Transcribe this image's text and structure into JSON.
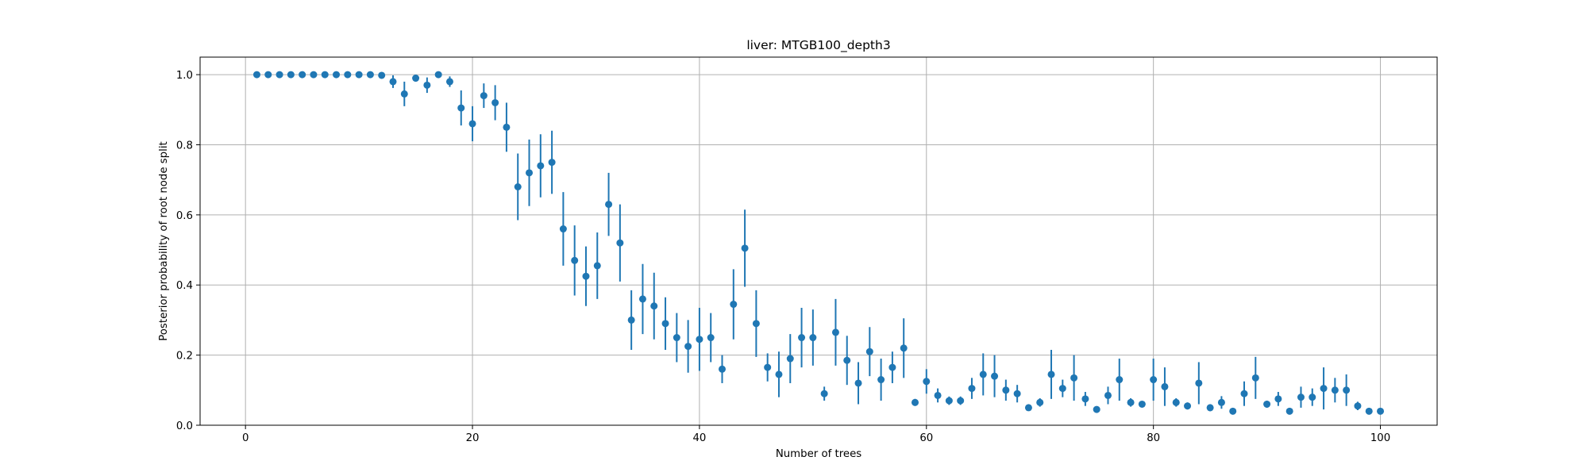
{
  "chart_data": {
    "type": "scatter",
    "title": "liver: MTGB100_depth3",
    "xlabel": "Number of trees",
    "ylabel": "Posterior probability of root node split",
    "xlim": [
      -4,
      105
    ],
    "ylim": [
      0,
      1.05
    ],
    "xticks": [
      0,
      20,
      40,
      60,
      80,
      100
    ],
    "yticks": [
      0.0,
      0.2,
      0.4,
      0.6,
      0.8,
      1.0
    ],
    "grid": true,
    "marker_color": "#1f77b4",
    "series": [
      {
        "x": [
          1,
          2,
          3,
          4,
          5,
          6,
          7,
          8,
          9,
          10,
          11,
          12,
          13,
          14,
          15,
          16,
          17,
          18,
          19,
          20,
          21,
          22,
          23,
          24,
          25,
          26,
          27,
          28,
          29,
          30,
          31,
          32,
          33,
          34,
          35,
          36,
          37,
          38,
          39,
          40,
          41,
          42,
          43,
          44,
          45,
          46,
          47,
          48,
          49,
          50,
          51,
          52,
          53,
          54,
          55,
          56,
          57,
          58,
          59,
          60,
          61,
          62,
          63,
          64,
          65,
          66,
          67,
          68,
          69,
          70,
          71,
          72,
          73,
          74,
          75,
          76,
          77,
          78,
          79,
          80,
          81,
          82,
          83,
          84,
          85,
          86,
          87,
          88,
          89,
          90,
          91,
          92,
          93,
          94,
          95,
          96,
          97,
          98,
          99,
          100
        ],
        "y": [
          1.0,
          1.0,
          1.0,
          1.0,
          1.0,
          1.0,
          1.0,
          1.0,
          1.0,
          1.0,
          1.0,
          0.998,
          0.98,
          0.945,
          0.99,
          0.97,
          1.0,
          0.98,
          0.905,
          0.86,
          0.94,
          0.92,
          0.85,
          0.68,
          0.72,
          0.74,
          0.75,
          0.56,
          0.47,
          0.425,
          0.455,
          0.63,
          0.52,
          0.3,
          0.36,
          0.34,
          0.29,
          0.25,
          0.225,
          0.245,
          0.25,
          0.16,
          0.345,
          0.505,
          0.29,
          0.165,
          0.145,
          0.19,
          0.25,
          0.25,
          0.09,
          0.265,
          0.185,
          0.12,
          0.21,
          0.13,
          0.165,
          0.22,
          0.065,
          0.125,
          0.085,
          0.07,
          0.07,
          0.105,
          0.145,
          0.14,
          0.1,
          0.09,
          0.05,
          0.065,
          0.145,
          0.105,
          0.135,
          0.075,
          0.045,
          0.085,
          0.13,
          0.065,
          0.06,
          0.13,
          0.11,
          0.065,
          0.055,
          0.12,
          0.05,
          0.065,
          0.04,
          0.09,
          0.135,
          0.06,
          0.075,
          0.04,
          0.08,
          0.08,
          0.105,
          0.1,
          0.1,
          0.055,
          0.04,
          0.04
        ],
        "err": [
          0,
          0,
          0,
          0,
          0,
          0,
          0,
          0,
          0,
          0,
          0,
          0.005,
          0.018,
          0.035,
          0.01,
          0.022,
          0,
          0.015,
          0.05,
          0.05,
          0.035,
          0.05,
          0.07,
          0.095,
          0.095,
          0.09,
          0.09,
          0.105,
          0.1,
          0.085,
          0.095,
          0.09,
          0.11,
          0.085,
          0.1,
          0.095,
          0.075,
          0.07,
          0.075,
          0.09,
          0.07,
          0.04,
          0.1,
          0.11,
          0.095,
          0.04,
          0.065,
          0.07,
          0.085,
          0.08,
          0.02,
          0.095,
          0.07,
          0.06,
          0.07,
          0.06,
          0.045,
          0.085,
          0.01,
          0.035,
          0.02,
          0.012,
          0.012,
          0.03,
          0.06,
          0.06,
          0.03,
          0.025,
          0.008,
          0.012,
          0.07,
          0.025,
          0.065,
          0.02,
          0.008,
          0.025,
          0.06,
          0.012,
          0.008,
          0.06,
          0.055,
          0.012,
          0.01,
          0.06,
          0.01,
          0.018,
          0.008,
          0.035,
          0.06,
          0.01,
          0.02,
          0.008,
          0.03,
          0.025,
          0.06,
          0.035,
          0.045,
          0.012,
          0.006,
          0.006
        ]
      }
    ]
  }
}
